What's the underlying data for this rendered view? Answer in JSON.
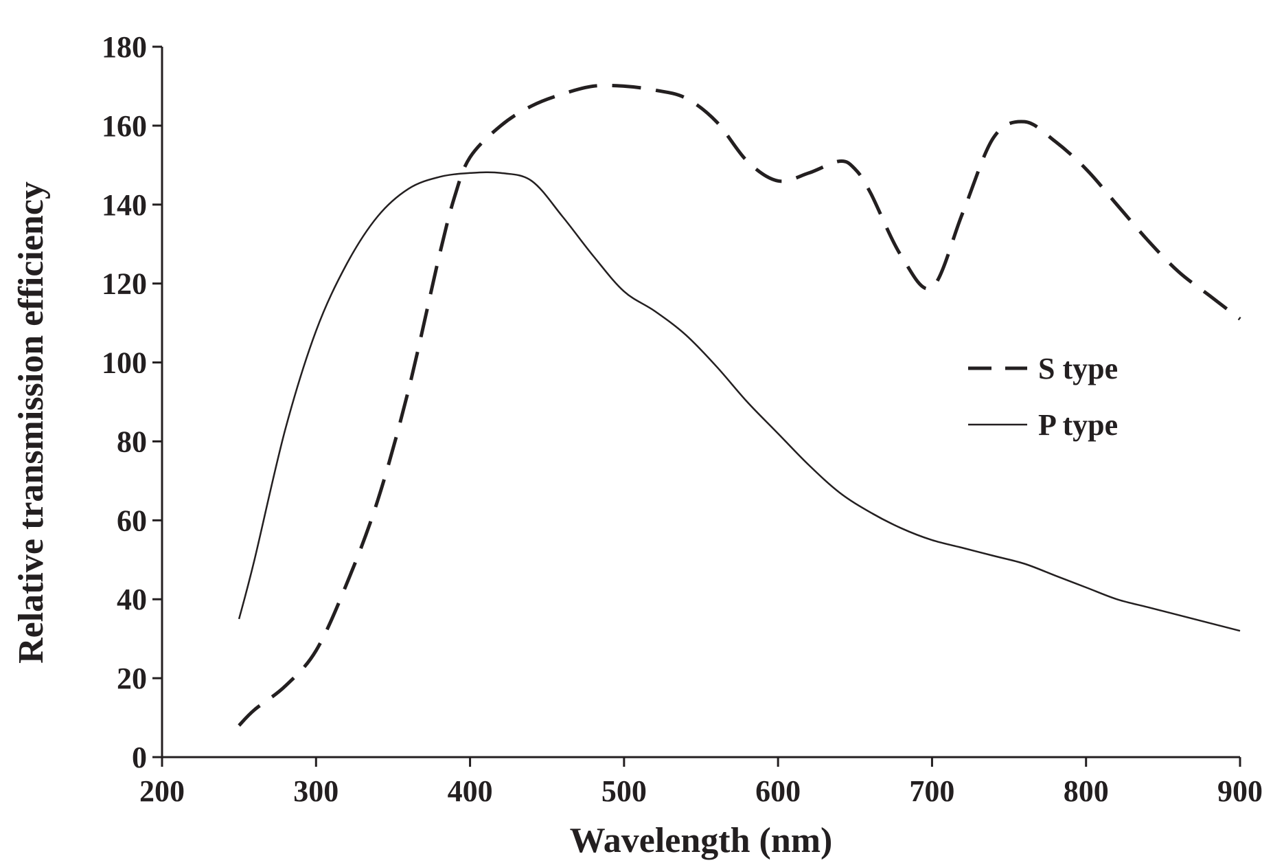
{
  "chart_data": {
    "type": "line",
    "title": "",
    "xlabel": "Wavelength (nm)",
    "ylabel": "Relative transmission efficiency",
    "xlim": [
      200,
      900
    ],
    "ylim": [
      0,
      180
    ],
    "xticks": [
      200,
      300,
      400,
      500,
      600,
      700,
      800,
      900
    ],
    "yticks": [
      0,
      20,
      40,
      60,
      80,
      100,
      120,
      140,
      160,
      180
    ],
    "grid": false,
    "legend_position": "center-right",
    "series": [
      {
        "name": "S type",
        "style": "dashed",
        "x": [
          250,
          260,
          280,
          300,
          320,
          340,
          360,
          380,
          390,
          400,
          420,
          440,
          460,
          480,
          500,
          520,
          540,
          560,
          580,
          600,
          620,
          640,
          650,
          660,
          680,
          700,
          720,
          740,
          760,
          780,
          800,
          820,
          840,
          860,
          880,
          900
        ],
        "values": [
          8,
          12,
          18,
          27,
          44,
          65,
          93,
          127,
          142,
          152,
          160,
          165,
          168,
          170,
          170,
          169,
          167,
          161,
          151,
          146,
          148,
          151,
          149,
          143,
          127,
          119,
          138,
          157,
          161,
          156,
          149,
          140,
          131,
          123,
          117,
          111
        ]
      },
      {
        "name": "P type",
        "style": "solid",
        "x": [
          250,
          260,
          280,
          300,
          320,
          340,
          360,
          380,
          400,
          420,
          440,
          460,
          480,
          500,
          520,
          540,
          560,
          580,
          600,
          620,
          640,
          660,
          680,
          700,
          720,
          740,
          760,
          780,
          800,
          820,
          840,
          860,
          880,
          900
        ],
        "values": [
          35,
          50,
          83,
          108,
          125,
          137,
          144,
          147,
          148,
          148,
          146,
          137,
          127,
          118,
          113,
          107,
          99,
          90,
          82,
          74,
          67,
          62,
          58,
          55,
          53,
          51,
          49,
          46,
          43,
          40,
          38,
          36,
          34,
          32
        ]
      }
    ]
  }
}
